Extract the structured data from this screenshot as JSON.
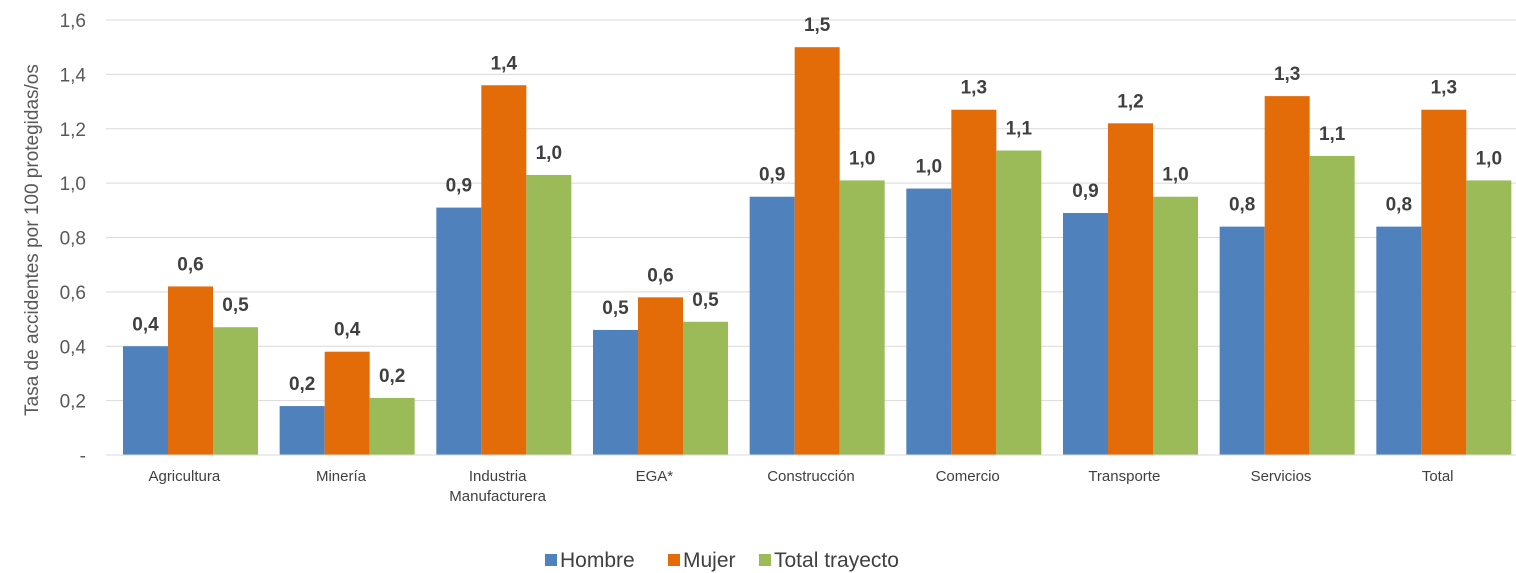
{
  "chart_data": {
    "type": "bar",
    "ylabel": "Tasa de accidentes por 100 protegidas/os",
    "xlabel": "",
    "ylim": [
      0,
      1.6
    ],
    "yticks": [
      "-",
      "0,2",
      "0,4",
      "0,6",
      "0,8",
      "1,0",
      "1,2",
      "1,4",
      "1,6"
    ],
    "grid": true,
    "legend_position": "bottom",
    "categories": [
      [
        "Agricultura"
      ],
      [
        "Minería"
      ],
      [
        "Industria",
        "Manufacturera"
      ],
      [
        "EGA*"
      ],
      [
        "Construcción"
      ],
      [
        "Comercio"
      ],
      [
        "Transporte"
      ],
      [
        "Servicios"
      ],
      [
        "Total"
      ]
    ],
    "series": [
      {
        "name": "Hombre",
        "color": "#4f81bd",
        "values": [
          0.4,
          0.18,
          0.91,
          0.46,
          0.95,
          0.98,
          0.89,
          0.84,
          0.84
        ],
        "labels": [
          "0,4",
          "0,2",
          "0,9",
          "0,5",
          "0,9",
          "1,0",
          "0,9",
          "0,8",
          "0,8"
        ]
      },
      {
        "name": "Mujer",
        "color": "#e36c09",
        "values": [
          0.62,
          0.38,
          1.36,
          0.58,
          1.5,
          1.27,
          1.22,
          1.32,
          1.27
        ],
        "labels": [
          "0,6",
          "0,4",
          "1,4",
          "0,6",
          "1,5",
          "1,3",
          "1,2",
          "1,3",
          "1,3"
        ]
      },
      {
        "name": "Total trayecto",
        "color": "#9bbb59",
        "values": [
          0.47,
          0.21,
          1.03,
          0.49,
          1.01,
          1.12,
          0.95,
          1.1,
          1.01
        ],
        "labels": [
          "0,5",
          "0,2",
          "1,0",
          "0,5",
          "1,0",
          "1,1",
          "1,0",
          "1,1",
          "1,0"
        ]
      }
    ]
  }
}
